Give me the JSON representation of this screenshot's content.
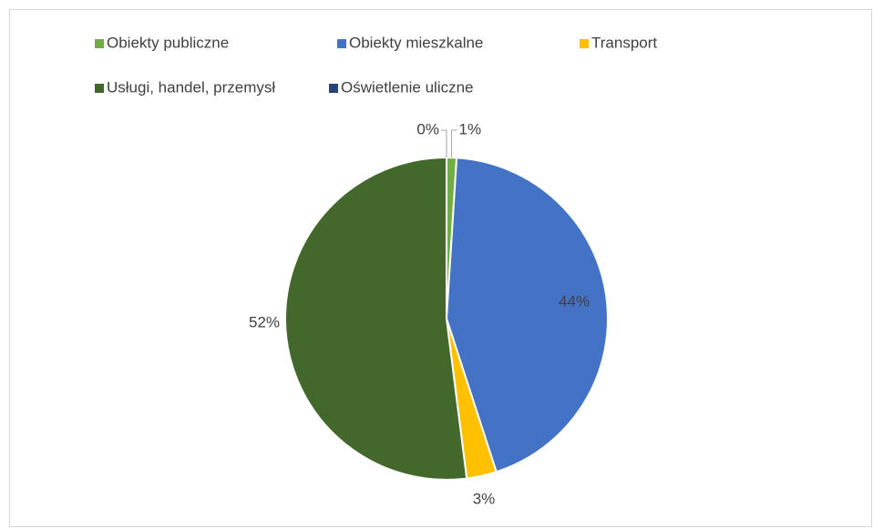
{
  "chart_data": {
    "type": "pie",
    "categories": [
      "Obiekty publiczne",
      "Obiekty mieszkalne",
      "Transport",
      "Usługi, handel, przemysł",
      "Oświetlenie uliczne"
    ],
    "values": [
      1,
      44,
      3,
      52,
      0
    ],
    "value_labels": [
      "1%",
      "44%",
      "3%",
      "52%",
      "0%"
    ],
    "colors": [
      "#70ad47",
      "#4472c4",
      "#ffc000",
      "#43682b",
      "#264478"
    ],
    "legend": "top"
  }
}
